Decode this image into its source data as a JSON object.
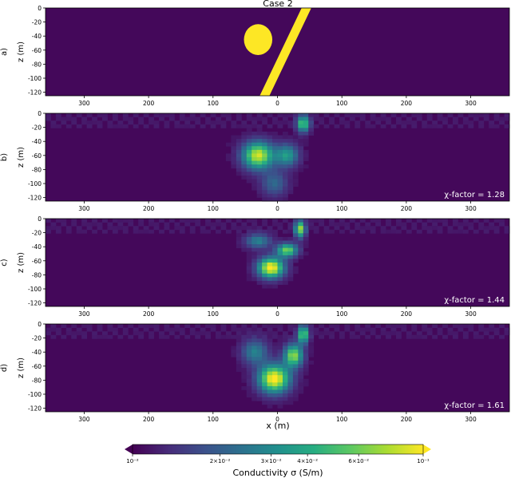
{
  "title": "Case 2",
  "xlabel": "x (m)",
  "ylabel": "z (m)",
  "colorbar": {
    "label": "Conductivity σ (S/m)",
    "scale": "log",
    "range": [
      0.01,
      0.1
    ],
    "tick_labels": [
      "10⁻²",
      "2×10⁻²",
      "3×10⁻²",
      "4×10⁻²",
      "6×10⁻²",
      "10⁻¹"
    ],
    "tick_values": [
      0.01,
      0.02,
      0.03,
      0.04,
      0.06,
      0.1
    ],
    "colormap": "viridis"
  },
  "colors": {
    "low": "#440154",
    "high": "#fde725"
  },
  "chart_data": [
    {
      "type": "heatmap",
      "panel": "a)",
      "annotation": "",
      "xlim": [
        -360,
        360
      ],
      "ylim": [
        -125,
        0
      ],
      "xticks": [
        300,
        200,
        100,
        0,
        100,
        200,
        300
      ],
      "yticks": [
        0,
        -20,
        -40,
        -60,
        -80,
        -100,
        -120
      ],
      "features": [
        {
          "shape": "circle",
          "cx": -30,
          "cz": -45,
          "r": 22,
          "level": 1.0
        },
        {
          "shape": "dipping-plate",
          "top_x": 45,
          "bottom_x": -20,
          "width": 15,
          "level": 1.0
        }
      ]
    },
    {
      "type": "heatmap",
      "panel": "b)",
      "annotation": "χ-factor = 1.28",
      "xlim": [
        -360,
        360
      ],
      "ylim": [
        -125,
        0
      ],
      "xticks": [
        300,
        200,
        100,
        0,
        100,
        200,
        300
      ],
      "yticks": [
        0,
        -20,
        -40,
        -60,
        -80,
        -100,
        -120
      ],
      "features": [
        {
          "cx": -30,
          "cz": -60,
          "rx": 30,
          "rz": 24,
          "level": 0.9
        },
        {
          "cx": 15,
          "cz": -60,
          "rx": 22,
          "rz": 20,
          "level": 0.5
        },
        {
          "cx": 40,
          "cz": -15,
          "rx": 12,
          "rz": 15,
          "level": 0.7
        },
        {
          "cx": -5,
          "cz": -100,
          "rx": 25,
          "rz": 22,
          "level": 0.3
        }
      ]
    },
    {
      "type": "heatmap",
      "panel": "c)",
      "annotation": "χ-factor = 1.44",
      "xlim": [
        -360,
        360
      ],
      "ylim": [
        -125,
        0
      ],
      "xticks": [
        300,
        200,
        100,
        0,
        100,
        200,
        300
      ],
      "yticks": [
        0,
        -20,
        -40,
        -60,
        -80,
        -100,
        -120
      ],
      "features": [
        {
          "cx": -10,
          "cz": -70,
          "rx": 25,
          "rz": 18,
          "level": 1.0
        },
        {
          "cx": 15,
          "cz": -45,
          "rx": 20,
          "rz": 12,
          "level": 0.75
        },
        {
          "cx": 35,
          "cz": -15,
          "rx": 10,
          "rz": 15,
          "level": 0.8
        },
        {
          "cx": -30,
          "cz": -32,
          "rx": 25,
          "rz": 13,
          "level": 0.4
        }
      ]
    },
    {
      "type": "heatmap",
      "panel": "d)",
      "annotation": "χ-factor = 1.61",
      "xlim": [
        -360,
        360
      ],
      "ylim": [
        -125,
        0
      ],
      "xticks": [
        300,
        200,
        100,
        0,
        100,
        200,
        300
      ],
      "yticks": [
        0,
        -20,
        -40,
        -60,
        -80,
        -100,
        -120
      ],
      "features": [
        {
          "cx": -5,
          "cz": -78,
          "rx": 30,
          "rz": 25,
          "level": 1.0
        },
        {
          "cx": 25,
          "cz": -45,
          "rx": 18,
          "rz": 20,
          "level": 0.8
        },
        {
          "cx": 40,
          "cz": -15,
          "rx": 10,
          "rz": 16,
          "level": 0.75
        },
        {
          "cx": -35,
          "cz": -40,
          "rx": 25,
          "rz": 22,
          "level": 0.4
        }
      ]
    }
  ]
}
